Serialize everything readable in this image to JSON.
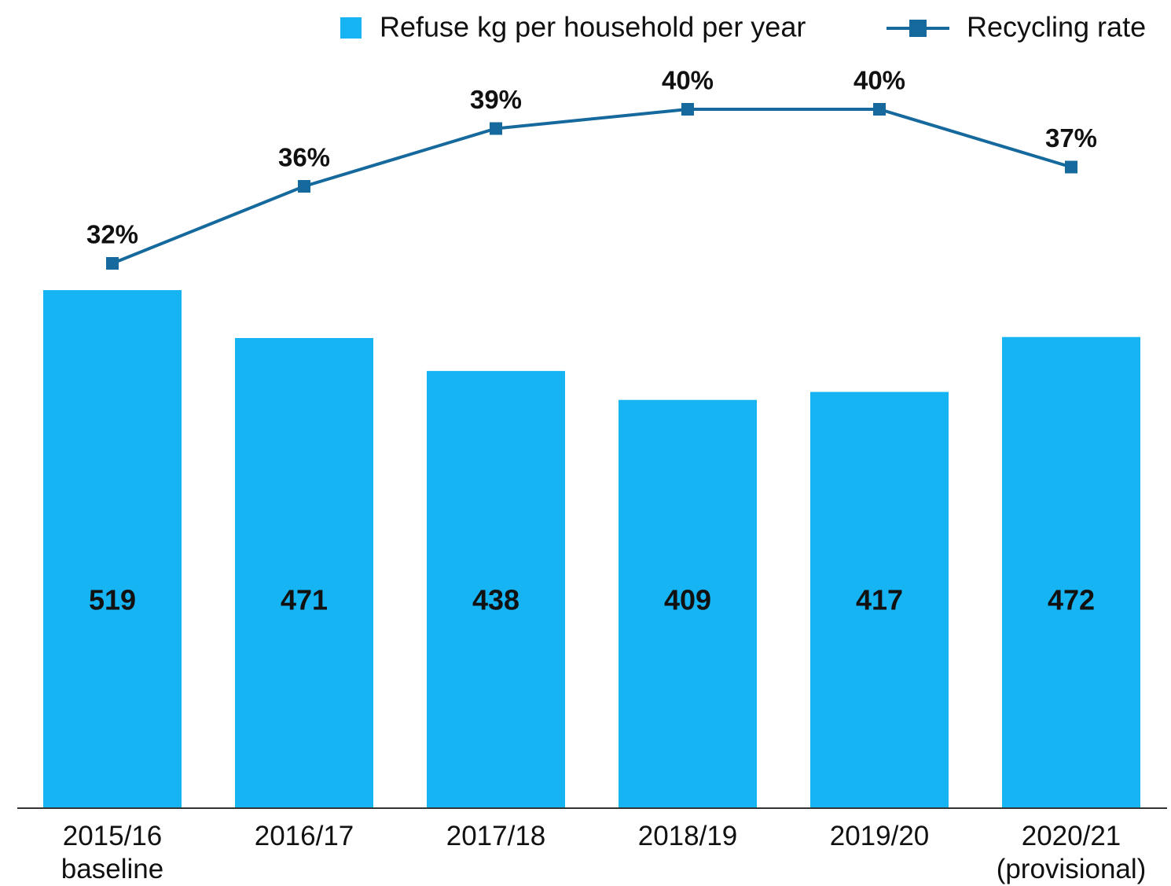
{
  "chart_data": {
    "type": "bar",
    "categories": [
      "2015/16 baseline",
      "2016/17",
      "2017/18",
      "2018/19",
      "2019/20",
      "2020/21 (provisional)"
    ],
    "series": [
      {
        "name": "Refuse kg per household per year",
        "type": "bar",
        "color": "#17b4f4",
        "values": [
          519,
          471,
          438,
          409,
          417,
          472
        ]
      },
      {
        "name": "Recycling rate",
        "type": "line",
        "axis": "y2",
        "color": "#16699c",
        "values": [
          32,
          36,
          39,
          40,
          40,
          37
        ],
        "value_labels": [
          "32%",
          "36%",
          "39%",
          "40%",
          "40%",
          "37%"
        ]
      }
    ],
    "legend": "top-right"
  }
}
